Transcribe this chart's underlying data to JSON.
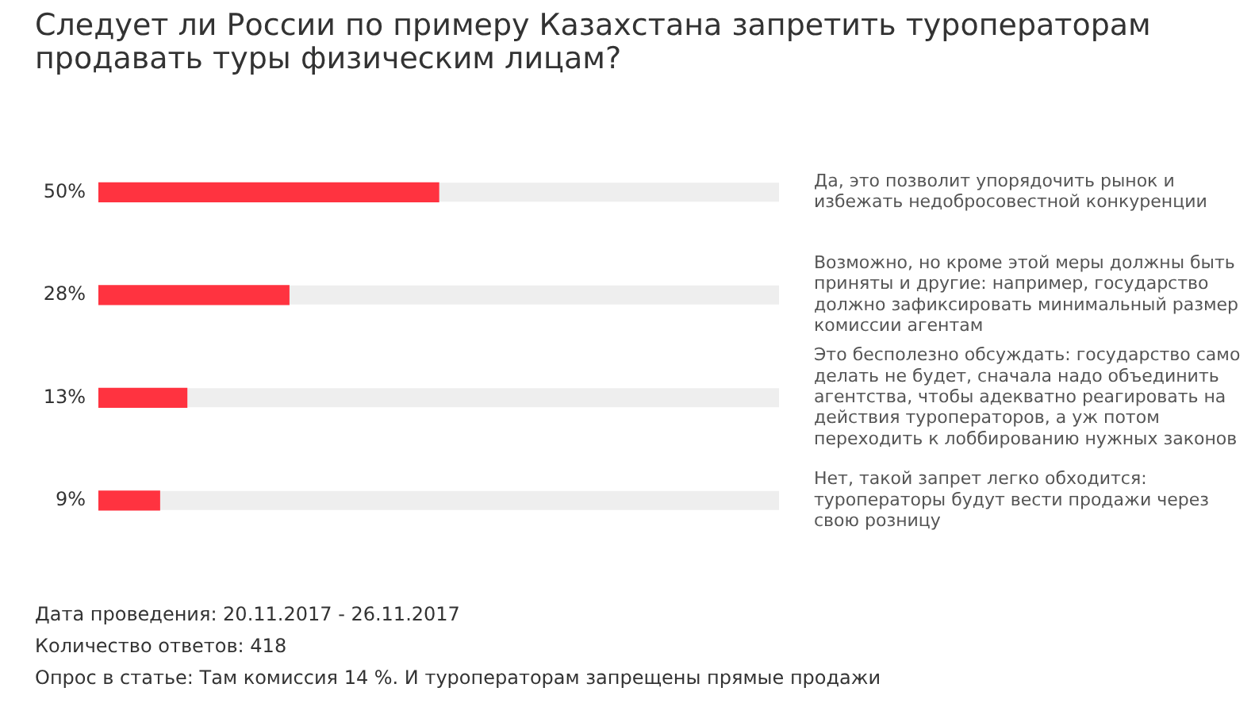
{
  "chart_data": {
    "type": "bar",
    "orientation": "horizontal",
    "title": "Следует ли России по примеру Казахстана запретить туроператорам продавать туры физическим лицам?",
    "categories": [
      "Да, это позволит упорядочить рынок и избежать недобросовестной конкуренции",
      "Возможно, но кроме этой меры должны быть приняты и другие: например, государство должно зафиксировать минимальный размер комиссии агентам",
      "Это бесполезно обсуждать: государство само делать не будет, сначала надо объединить агентства, чтобы адекватно реагировать на действия туроператоров, а уж потом переходить к лоббированию нужных законов",
      "Нет, такой запрет легко обходится: туроператоры будут вести продажи через свою розницу"
    ],
    "values": [
      50,
      28,
      13,
      9
    ],
    "value_labels": [
      "50%",
      "28%",
      "13%",
      "9%"
    ],
    "color": "#ff3340",
    "tick_labels": "y",
    "grid": false,
    "legend": false,
    "annotations": [
      "Дата проведения: 20.11.2017 - 26.11.2017",
      "Количество ответов: 418",
      "Опрос в статье: Там комиссия 14 %. И туроператорам запрещены прямые продажи"
    ]
  }
}
